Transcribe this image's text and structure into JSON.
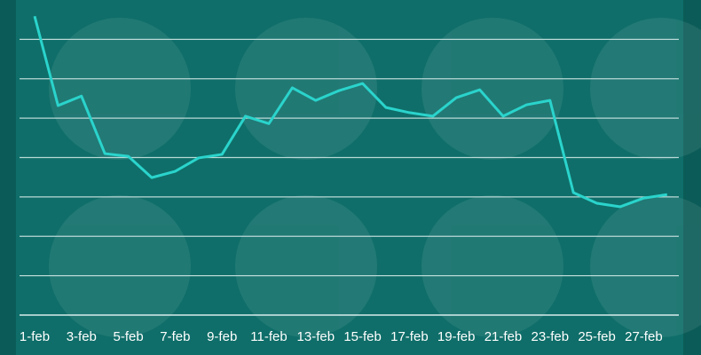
{
  "chart_data": {
    "type": "line",
    "categories": [
      "1-feb",
      null,
      "3-feb",
      null,
      "5-feb",
      null,
      "7-feb",
      null,
      "9-feb",
      null,
      "11-feb",
      null,
      "13-feb",
      null,
      "15-feb",
      null,
      "17-feb",
      null,
      "19-feb",
      null,
      "21-feb",
      null,
      "23-feb",
      null,
      "25-feb",
      null,
      "27-feb",
      null
    ],
    "values": [
      7.59,
      5.32,
      5.56,
      4.1,
      4.03,
      3.49,
      3.65,
      3.99,
      4.08,
      5.05,
      4.86,
      5.77,
      5.45,
      5.7,
      5.88,
      5.27,
      5.14,
      5.05,
      5.52,
      5.72,
      5.05,
      5.34,
      5.45,
      3.11,
      2.84,
      2.75,
      2.97,
      3.06
    ],
    "color": "#2ad4cc",
    "ylim": [
      0,
      8
    ],
    "yticks": [
      1,
      2,
      3,
      4,
      5,
      6,
      7
    ],
    "grid": true
  }
}
